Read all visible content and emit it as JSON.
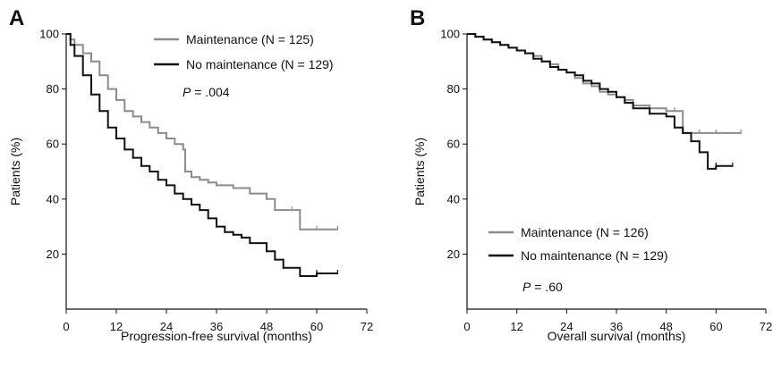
{
  "chart_data": [
    {
      "type": "line",
      "panel": "A",
      "xlabel": "Progression-free survival (months)",
      "ylabel": "Patients (%)",
      "xlim": [
        0,
        72
      ],
      "ylim": [
        0,
        100
      ],
      "xticks": [
        0,
        12,
        24,
        36,
        48,
        60,
        72
      ],
      "yticks": [
        20,
        40,
        60,
        80,
        100
      ],
      "grid": false,
      "legend_position": "top-right",
      "annotation": {
        "prefix": "P",
        "text": " = .004"
      },
      "series": [
        {
          "name": "Maintenance (N = 125)",
          "color": "#8c8c8c",
          "x": [
            0,
            1,
            2,
            4,
            6,
            8,
            10,
            12,
            14,
            16,
            18,
            20,
            22,
            24,
            26,
            28,
            28.5,
            30,
            32,
            34,
            36,
            40,
            44,
            48,
            50,
            54,
            56,
            60,
            65
          ],
          "y": [
            100,
            98,
            96,
            93,
            90,
            85,
            80,
            76,
            72,
            70,
            68,
            66,
            64,
            62,
            60,
            58,
            50,
            48,
            47,
            46,
            45,
            44,
            42,
            40,
            36,
            36,
            29,
            29,
            29
          ]
        },
        {
          "name": "No maintenance (N = 129)",
          "color": "#111111",
          "x": [
            0,
            1,
            2,
            4,
            6,
            8,
            10,
            12,
            14,
            16,
            18,
            20,
            22,
            24,
            26,
            28,
            30,
            32,
            34,
            36,
            38,
            40,
            42,
            44,
            48,
            50,
            52,
            56,
            60,
            65
          ],
          "y": [
            100,
            96,
            92,
            85,
            78,
            72,
            66,
            62,
            58,
            55,
            52,
            50,
            47,
            45,
            42,
            40,
            38,
            36,
            33,
            30,
            28,
            27,
            26,
            24,
            21,
            18,
            15,
            12,
            13,
            13
          ]
        }
      ]
    },
    {
      "type": "line",
      "panel": "B",
      "xlabel": "Overall survival (months)",
      "ylabel": "Patients (%)",
      "xlim": [
        0,
        72
      ],
      "ylim": [
        0,
        100
      ],
      "xticks": [
        0,
        12,
        24,
        36,
        48,
        60,
        72
      ],
      "yticks": [
        20,
        40,
        60,
        80,
        100
      ],
      "grid": false,
      "legend_position": "bottom-left",
      "annotation": {
        "prefix": "P",
        "text": " = .60"
      },
      "series": [
        {
          "name": "Maintenance (N = 126)",
          "color": "#8c8c8c",
          "x": [
            0,
            2,
            4,
            6,
            8,
            10,
            12,
            14,
            16,
            18,
            20,
            22,
            24,
            26,
            28,
            30,
            32,
            34,
            36,
            38,
            40,
            44,
            48,
            50,
            52,
            56,
            60,
            66
          ],
          "y": [
            100,
            99,
            98,
            97,
            96,
            95,
            94,
            93,
            92,
            90,
            89,
            87,
            86,
            84,
            82,
            81,
            79,
            78,
            77,
            76,
            74,
            73,
            72,
            72,
            64,
            64,
            64,
            64
          ]
        },
        {
          "name": "No maintenance (N = 129)",
          "color": "#111111",
          "x": [
            0,
            2,
            4,
            6,
            8,
            10,
            12,
            14,
            16,
            18,
            20,
            22,
            24,
            26,
            28,
            30,
            32,
            34,
            36,
            38,
            40,
            44,
            48,
            50,
            52,
            54,
            56,
            58,
            60,
            64
          ],
          "y": [
            100,
            99,
            98,
            97,
            96,
            95,
            94,
            93,
            91,
            90,
            88,
            87,
            86,
            85,
            83,
            82,
            80,
            79,
            77,
            75,
            73,
            71,
            70,
            66,
            64,
            61,
            57,
            51,
            52,
            52
          ]
        }
      ]
    }
  ]
}
